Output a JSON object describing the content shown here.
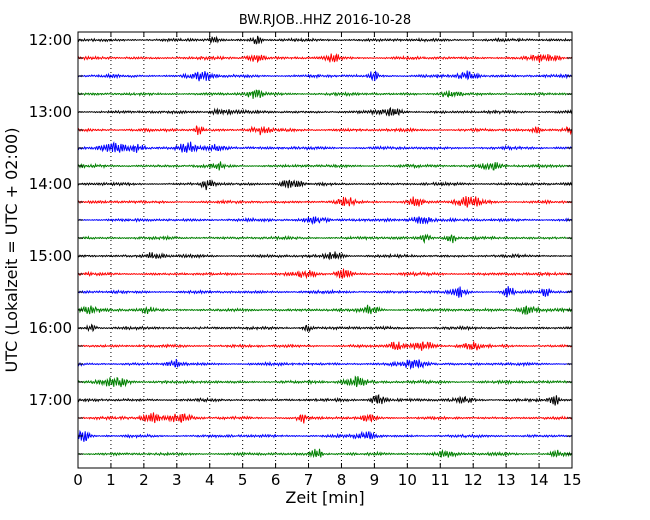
{
  "chart_data": {
    "type": "line",
    "title": "BW.RJOB..HHZ 2016-10-28",
    "xlabel": "Zeit  [min]",
    "ylabel": "UTC (Lokalzeit = UTC + 02:00)",
    "xlim": [
      0,
      15
    ],
    "x_ticks": [
      "0",
      "1",
      "2",
      "3",
      "4",
      "5",
      "6",
      "7",
      "8",
      "9",
      "10",
      "11",
      "12",
      "13",
      "14",
      "15"
    ],
    "y_tick_labels": [
      "12:00",
      "13:00",
      "14:00",
      "15:00",
      "16:00",
      "17:00"
    ],
    "grid": {
      "vertical_dotted": true
    },
    "trace_interval_minutes": 15,
    "color_cycle": [
      "#000000",
      "#ff0000",
      "#0000ff",
      "#008000"
    ],
    "traces": [
      {
        "start": "12:00"
      },
      {
        "start": "12:15"
      },
      {
        "start": "12:30"
      },
      {
        "start": "12:45"
      },
      {
        "start": "13:00"
      },
      {
        "start": "13:15"
      },
      {
        "start": "13:30"
      },
      {
        "start": "13:45"
      },
      {
        "start": "14:00"
      },
      {
        "start": "14:15"
      },
      {
        "start": "14:30"
      },
      {
        "start": "14:45"
      },
      {
        "start": "15:00"
      },
      {
        "start": "15:15"
      },
      {
        "start": "15:30"
      },
      {
        "start": "15:45"
      },
      {
        "start": "16:00"
      },
      {
        "start": "16:15"
      },
      {
        "start": "16:30"
      },
      {
        "start": "16:45"
      },
      {
        "start": "17:00"
      },
      {
        "start": "17:15"
      },
      {
        "start": "17:30"
      },
      {
        "start": "17:45"
      }
    ]
  }
}
